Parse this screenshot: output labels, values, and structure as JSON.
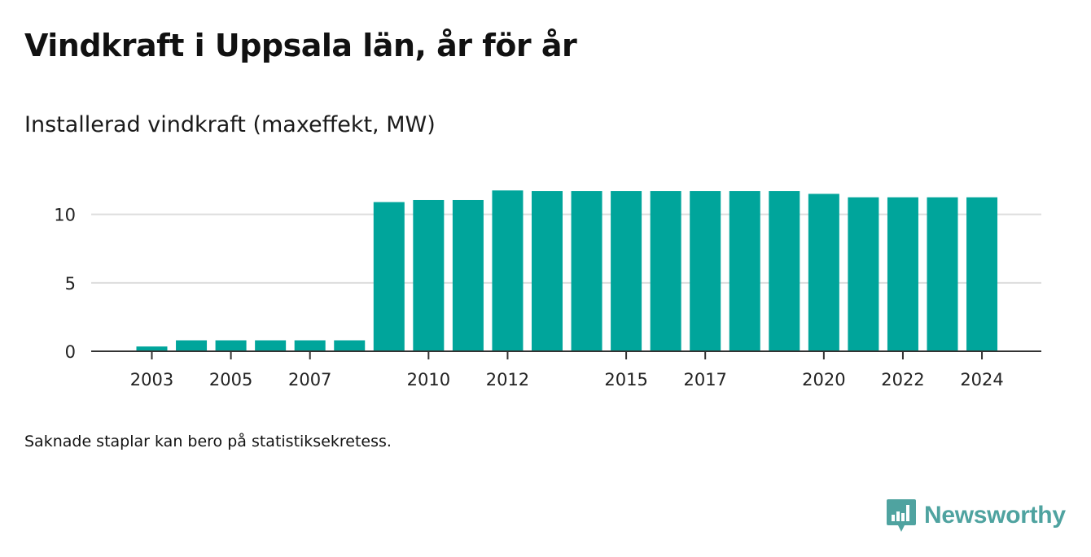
{
  "title": "Vindkraft i Uppsala län, år för år",
  "subtitle": "Installerad vindkraft (maxeffekt, MW)",
  "footnote": "Saknade staplar kan bero på statistiksekretess.",
  "brand": {
    "name": "Newsworthy",
    "color": "#4fa3a0",
    "icon": "newsworthy-logo-icon"
  },
  "colors": {
    "bar": "#00a59b",
    "grid": "#dddddd",
    "axis": "#333333"
  },
  "chart_data": {
    "type": "bar",
    "categories": [
      "2003",
      "2004",
      "2005",
      "2006",
      "2007",
      "2008",
      "2009",
      "2010",
      "2011",
      "2012",
      "2013",
      "2014",
      "2015",
      "2016",
      "2017",
      "2018",
      "2019",
      "2020",
      "2021",
      "2022",
      "2023",
      "2024"
    ],
    "values": [
      0.35,
      0.8,
      0.8,
      0.8,
      0.8,
      0.8,
      10.9,
      11.05,
      11.05,
      11.75,
      11.7,
      11.7,
      11.7,
      11.7,
      11.7,
      11.7,
      11.7,
      11.5,
      11.25,
      11.25,
      11.25,
      11.25
    ],
    "x_tick_labels": [
      "2003",
      "2005",
      "2007",
      "2010",
      "2012",
      "2015",
      "2017",
      "2020",
      "2022",
      "2024"
    ],
    "y_ticks": [
      0,
      5,
      10
    ],
    "ylim": [
      0,
      12
    ],
    "xlabel": "",
    "ylabel": "",
    "grid": true
  }
}
